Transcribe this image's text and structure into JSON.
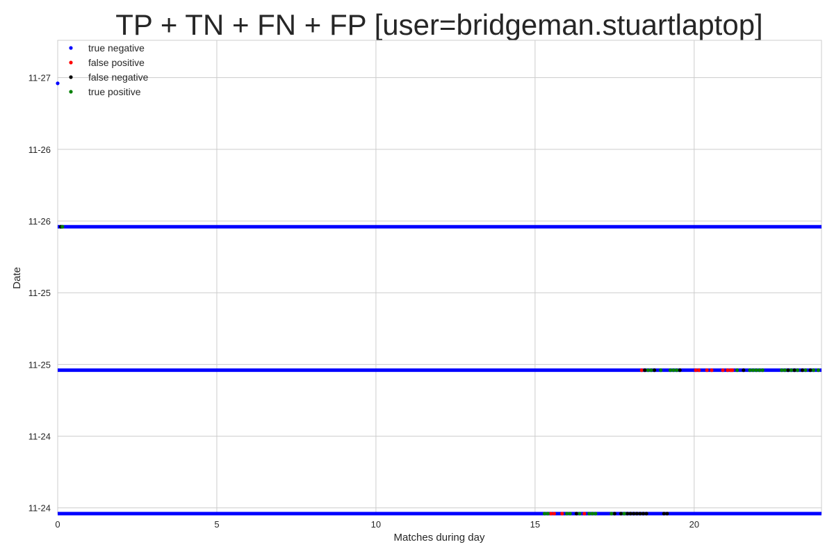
{
  "chart_data": {
    "type": "scatter",
    "title": "TP + TN + FN + FP [user=bridgeman.stuartlaptop]",
    "xlabel": "Matches during day",
    "ylabel": "Date",
    "xlim": [
      0,
      24
    ],
    "ylim": [
      0,
      6.6
    ],
    "x_ticks": [
      0,
      5,
      10,
      15,
      20
    ],
    "y_ticks": [
      {
        "value": 0.08,
        "label": "11-24"
      },
      {
        "value": 1.08,
        "label": "11-24"
      },
      {
        "value": 2.08,
        "label": "11-25"
      },
      {
        "value": 3.08,
        "label": "11-25"
      },
      {
        "value": 4.08,
        "label": "11-26"
      },
      {
        "value": 5.08,
        "label": "11-26"
      },
      {
        "value": 6.08,
        "label": "11-27"
      }
    ],
    "grid": true,
    "legend_position": "top-left",
    "series": [
      {
        "name": "true negative",
        "color": "#0000ff",
        "segments": [
          {
            "y": 0,
            "x_start": 0,
            "x_end": 24
          },
          {
            "y": 2,
            "x_start": 0,
            "x_end": 24
          },
          {
            "y": 4,
            "x_start": 0,
            "x_end": 24
          }
        ],
        "points": [
          {
            "x": 0,
            "y": 6
          }
        ]
      },
      {
        "name": "false positive",
        "color": "#ff0000",
        "points": [
          {
            "x": 15.5,
            "y": 0
          },
          {
            "x": 15.6,
            "y": 0
          },
          {
            "x": 15.85,
            "y": 0
          },
          {
            "x": 16.55,
            "y": 0
          },
          {
            "x": 18.35,
            "y": 2
          },
          {
            "x": 20.05,
            "y": 2
          },
          {
            "x": 20.15,
            "y": 2
          },
          {
            "x": 20.4,
            "y": 2
          },
          {
            "x": 20.55,
            "y": 2
          },
          {
            "x": 20.9,
            "y": 2
          },
          {
            "x": 21.05,
            "y": 2
          },
          {
            "x": 21.15,
            "y": 2
          },
          {
            "x": 21.2,
            "y": 2
          }
        ]
      },
      {
        "name": "false negative",
        "color": "#000000",
        "points": [
          {
            "x": 16.3,
            "y": 0
          },
          {
            "x": 17.5,
            "y": 0
          },
          {
            "x": 17.7,
            "y": 0
          },
          {
            "x": 17.9,
            "y": 0
          },
          {
            "x": 18.0,
            "y": 0
          },
          {
            "x": 18.1,
            "y": 0
          },
          {
            "x": 18.2,
            "y": 0
          },
          {
            "x": 18.3,
            "y": 0
          },
          {
            "x": 18.4,
            "y": 0
          },
          {
            "x": 18.5,
            "y": 0
          },
          {
            "x": 19.05,
            "y": 0
          },
          {
            "x": 19.15,
            "y": 0
          },
          {
            "x": 0.1,
            "y": 4
          },
          {
            "x": 18.45,
            "y": 2
          },
          {
            "x": 18.75,
            "y": 2
          },
          {
            "x": 19.55,
            "y": 2
          },
          {
            "x": 21.55,
            "y": 2
          },
          {
            "x": 22.95,
            "y": 2
          },
          {
            "x": 23.15,
            "y": 2
          },
          {
            "x": 23.4,
            "y": 2
          },
          {
            "x": 23.65,
            "y": 2
          }
        ]
      },
      {
        "name": "true positive",
        "color": "#008000",
        "points": [
          {
            "x": 15.3,
            "y": 0
          },
          {
            "x": 15.4,
            "y": 0
          },
          {
            "x": 16.0,
            "y": 0
          },
          {
            "x": 16.1,
            "y": 0
          },
          {
            "x": 16.4,
            "y": 0
          },
          {
            "x": 16.7,
            "y": 0
          },
          {
            "x": 16.8,
            "y": 0
          },
          {
            "x": 16.9,
            "y": 0
          },
          {
            "x": 17.4,
            "y": 0
          },
          {
            "x": 17.8,
            "y": 0
          },
          {
            "x": 0.15,
            "y": 4
          },
          {
            "x": 18.55,
            "y": 2
          },
          {
            "x": 18.65,
            "y": 2
          },
          {
            "x": 18.95,
            "y": 2
          },
          {
            "x": 19.25,
            "y": 2
          },
          {
            "x": 19.35,
            "y": 2
          },
          {
            "x": 19.45,
            "y": 2
          },
          {
            "x": 21.35,
            "y": 2
          },
          {
            "x": 21.75,
            "y": 2
          },
          {
            "x": 21.85,
            "y": 2
          },
          {
            "x": 21.95,
            "y": 2
          },
          {
            "x": 22.05,
            "y": 2
          },
          {
            "x": 22.15,
            "y": 2
          },
          {
            "x": 22.75,
            "y": 2
          },
          {
            "x": 22.85,
            "y": 2
          },
          {
            "x": 23.05,
            "y": 2
          },
          {
            "x": 23.25,
            "y": 2
          },
          {
            "x": 23.5,
            "y": 2
          },
          {
            "x": 23.75,
            "y": 2
          },
          {
            "x": 23.9,
            "y": 2
          }
        ]
      }
    ]
  }
}
